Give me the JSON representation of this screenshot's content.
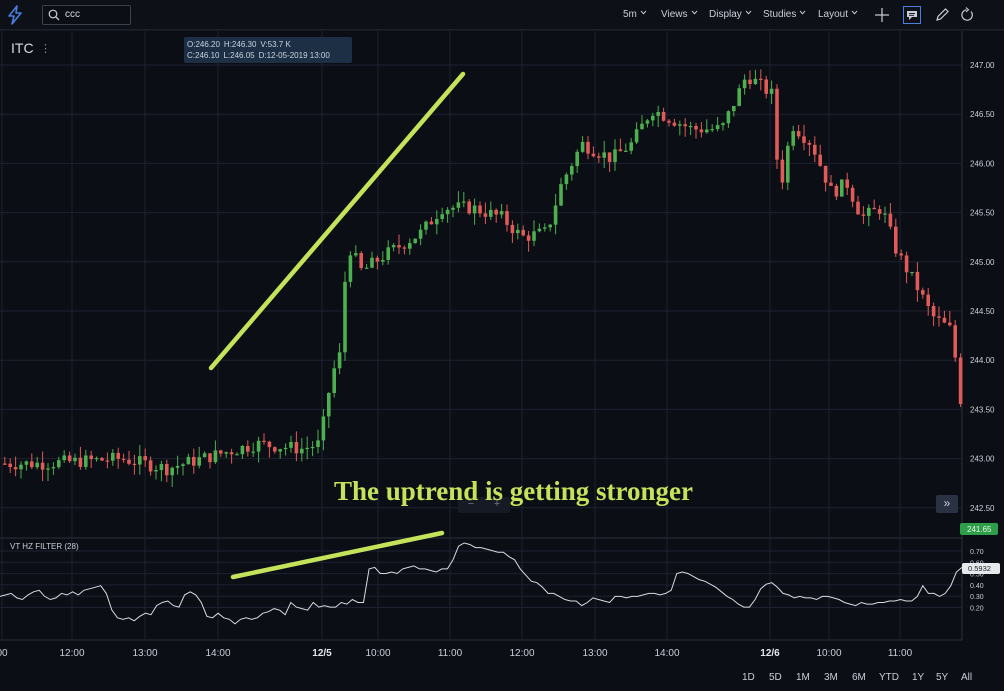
{
  "toolbar": {
    "search_value": "ccc",
    "interval": "5m",
    "views": "Views",
    "display": "Display",
    "studies": "Studies",
    "layout": "Layout"
  },
  "symbol": "ITC",
  "ohlc": {
    "open": "O:246.20",
    "high": "H:246.30",
    "volume": "V:53.7 K",
    "close": "C:246.10",
    "low": "L:246.05",
    "date": "D:12-05-2019 13:00"
  },
  "indicator_title": "VT HZ FILTER (28)",
  "annotation": "The uptrend is getting stronger",
  "price_axis": [
    "247.00",
    "246.50",
    "246.00",
    "245.50",
    "245.00",
    "244.50",
    "244.00",
    "243.50",
    "243.00",
    "242.50"
  ],
  "price_badge": "241.65",
  "indicator_axis": [
    "0.70",
    "0.60",
    "0.50",
    "0.40",
    "0.30",
    "0.20"
  ],
  "indicator_badge": "0.5932",
  "time_axis": [
    "00",
    "12:00",
    "13:00",
    "14:00",
    "12/5",
    "10:00",
    "11:00",
    "12:00",
    "13:00",
    "14:00",
    "12/6",
    "10:00",
    "11:00"
  ],
  "ranges": [
    "1D",
    "5D",
    "1M",
    "3M",
    "6M",
    "YTD",
    "1Y",
    "5Y",
    "All"
  ],
  "colors": {
    "up": "#4caf50",
    "down": "#e05a57",
    "annotation": "#c4e35a",
    "grid": "#1d2230"
  },
  "icons": [
    "lightning-icon",
    "search-icon",
    "plus-icon",
    "comment-icon",
    "pencil-icon",
    "refresh-icon",
    "chevron-right-double-icon"
  ],
  "chart_data": {
    "type": "candlestick",
    "price_range": [
      242.3,
      247.3
    ],
    "indicator_range": [
      0.18,
      0.75
    ],
    "indicator_series": [
      0.4,
      0.41,
      0.42,
      0.39,
      0.38,
      0.41,
      0.43,
      0.44,
      0.4,
      0.38,
      0.39,
      0.42,
      0.41,
      0.43,
      0.41,
      0.44,
      0.45,
      0.46,
      0.47,
      0.42,
      0.31,
      0.26,
      0.25,
      0.26,
      0.24,
      0.27,
      0.29,
      0.28,
      0.34,
      0.36,
      0.37,
      0.34,
      0.33,
      0.41,
      0.43,
      0.41,
      0.36,
      0.27,
      0.26,
      0.29,
      0.26,
      0.25,
      0.22,
      0.25,
      0.26,
      0.25,
      0.26,
      0.29,
      0.3,
      0.32,
      0.31,
      0.28,
      0.36,
      0.33,
      0.32,
      0.31,
      0.36,
      0.33,
      0.34,
      0.33,
      0.33,
      0.36,
      0.35,
      0.38,
      0.36,
      0.36,
      0.58,
      0.59,
      0.55,
      0.55,
      0.56,
      0.55,
      0.58,
      0.59,
      0.6,
      0.58,
      0.58,
      0.57,
      0.56,
      0.58,
      0.58,
      0.64,
      0.73,
      0.75,
      0.74,
      0.72,
      0.72,
      0.71,
      0.7,
      0.69,
      0.69,
      0.66,
      0.64,
      0.58,
      0.54,
      0.5,
      0.49,
      0.46,
      0.42,
      0.42,
      0.4,
      0.38,
      0.37,
      0.37,
      0.34,
      0.36,
      0.39,
      0.38,
      0.37,
      0.36,
      0.4,
      0.4,
      0.39,
      0.4,
      0.4,
      0.41,
      0.42,
      0.42,
      0.41,
      0.42,
      0.44,
      0.55,
      0.56,
      0.55,
      0.53,
      0.51,
      0.5,
      0.48,
      0.46,
      0.43,
      0.4,
      0.38,
      0.35,
      0.33,
      0.33,
      0.38,
      0.45,
      0.48,
      0.49,
      0.46,
      0.42,
      0.41,
      0.39,
      0.4,
      0.39,
      0.39,
      0.38,
      0.4,
      0.4,
      0.39,
      0.38,
      0.36,
      0.35,
      0.34,
      0.36,
      0.35,
      0.35,
      0.36,
      0.36,
      0.37,
      0.37,
      0.38,
      0.37,
      0.37,
      0.4,
      0.47,
      0.42,
      0.42,
      0.4,
      0.42,
      0.47,
      0.56,
      0.59
    ]
  }
}
